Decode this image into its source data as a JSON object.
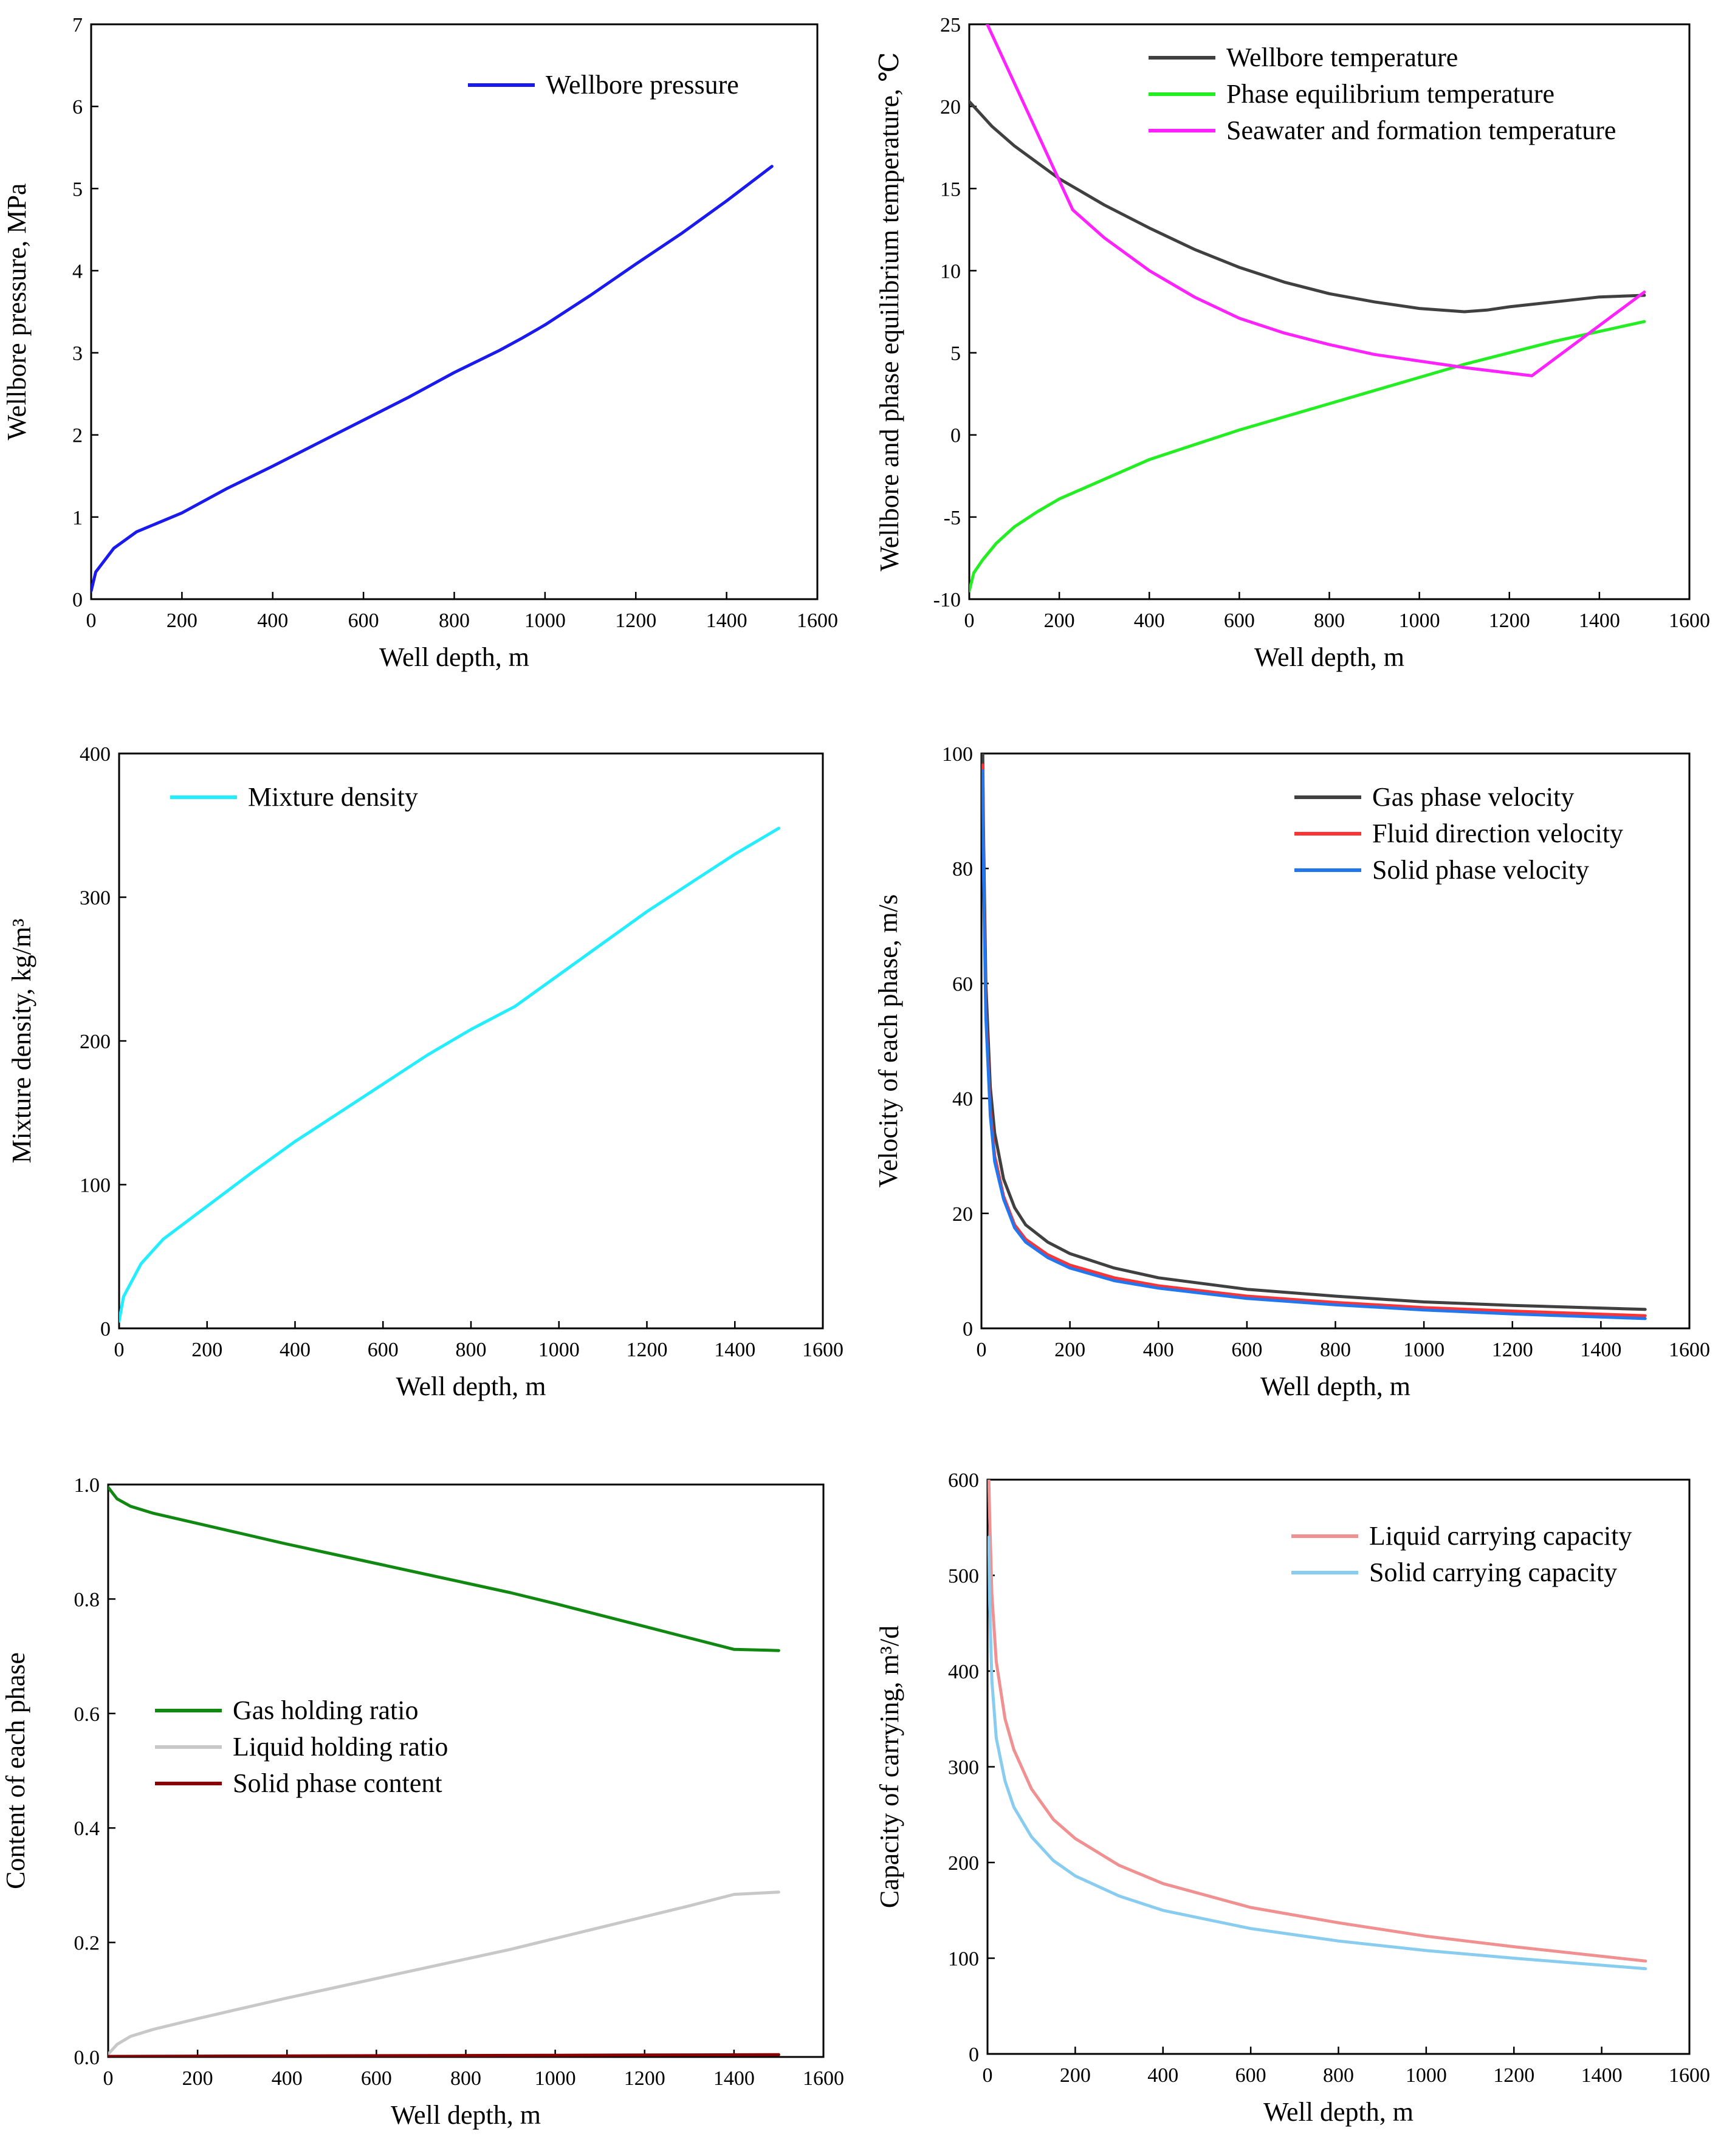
{
  "chart_data": [
    {
      "type": "line",
      "xlabel": "Well depth, m",
      "ylabel": "Wellbore pressure, MPa",
      "xlim": [
        0,
        1600
      ],
      "ylim": [
        0,
        7
      ],
      "xticks": [
        0,
        200,
        400,
        600,
        800,
        1000,
        1200,
        1400,
        1600
      ],
      "yticks": [
        0,
        1,
        2,
        3,
        4,
        5,
        6,
        7
      ],
      "legend_position": "top-right",
      "series": [
        {
          "name": "Wellbore pressure",
          "color": "#1a1aee",
          "x": [
            0,
            10,
            50,
            100,
            200,
            300,
            400,
            500,
            600,
            700,
            800,
            900,
            950,
            1000,
            1100,
            1200,
            1300,
            1400,
            1500
          ],
          "y": [
            0.1,
            0.33,
            0.62,
            0.82,
            1.05,
            1.35,
            1.62,
            1.9,
            2.18,
            2.46,
            2.76,
            3.03,
            3.18,
            3.34,
            3.7,
            4.08,
            4.45,
            4.85,
            5.27
          ]
        }
      ]
    },
    {
      "type": "line",
      "xlabel": "Well depth, m",
      "ylabel": "Wellbore and phase equilibrium temperature, ℃",
      "xlim": [
        0,
        1600
      ],
      "ylim": [
        -10,
        25
      ],
      "xticks": [
        0,
        200,
        400,
        600,
        800,
        1000,
        1200,
        1400,
        1600
      ],
      "yticks": [
        -10,
        -5,
        0,
        5,
        10,
        15,
        20,
        25
      ],
      "legend_position": "top-right",
      "series": [
        {
          "name": "Wellbore temperature",
          "color": "#404040",
          "x": [
            0,
            50,
            100,
            200,
            300,
            400,
            500,
            600,
            700,
            800,
            900,
            1000,
            1100,
            1150,
            1200,
            1300,
            1400,
            1500
          ],
          "y": [
            20.3,
            18.8,
            17.6,
            15.6,
            14.0,
            12.6,
            11.3,
            10.2,
            9.3,
            8.6,
            8.1,
            7.7,
            7.5,
            7.6,
            7.8,
            8.1,
            8.4,
            8.5
          ]
        },
        {
          "name": "Phase equilibrium temperature",
          "color": "#22ee22",
          "x": [
            0,
            10,
            30,
            60,
            100,
            150,
            200,
            300,
            400,
            500,
            600,
            700,
            800,
            900,
            1000,
            1100,
            1200,
            1300,
            1400,
            1500
          ],
          "y": [
            -9.5,
            -8.4,
            -7.6,
            -6.6,
            -5.6,
            -4.7,
            -3.9,
            -2.7,
            -1.5,
            -0.6,
            0.3,
            1.1,
            1.9,
            2.7,
            3.5,
            4.3,
            5.0,
            5.7,
            6.3,
            6.9
          ]
        },
        {
          "name": "Seawater and formation temperature",
          "color": "#ff22ff",
          "x": [
            40,
            230,
            300,
            400,
            500,
            600,
            700,
            800,
            900,
            1000,
            1100,
            1250,
            1500
          ],
          "y": [
            25,
            13.7,
            12.0,
            10.0,
            8.4,
            7.1,
            6.2,
            5.5,
            4.9,
            4.5,
            4.1,
            3.6,
            8.7
          ]
        }
      ]
    },
    {
      "type": "line",
      "xlabel": "Well depth, m",
      "ylabel": "Mixture density, kg/m³",
      "xlim": [
        0,
        1600
      ],
      "ylim": [
        0,
        400
      ],
      "xticks": [
        0,
        200,
        400,
        600,
        800,
        1000,
        1200,
        1400,
        1600
      ],
      "yticks": [
        0,
        100,
        200,
        300,
        400
      ],
      "legend_position": "top-left",
      "series": [
        {
          "name": "Mixture density",
          "color": "#22eeff",
          "x": [
            0,
            10,
            50,
            100,
            200,
            300,
            400,
            500,
            600,
            700,
            800,
            900,
            950,
            1000,
            1100,
            1200,
            1300,
            1400,
            1500
          ],
          "y": [
            5,
            22,
            45,
            62,
            85,
            108,
            130,
            150,
            170,
            190,
            208,
            224,
            235,
            246,
            268,
            290,
            310,
            330,
            348
          ]
        }
      ]
    },
    {
      "type": "line",
      "xlabel": "Well depth, m",
      "ylabel": "Velocity of each phase, m/s",
      "xlim": [
        0,
        1600
      ],
      "ylim": [
        0,
        100
      ],
      "xticks": [
        0,
        200,
        400,
        600,
        800,
        1000,
        1200,
        1400,
        1600
      ],
      "yticks": [
        0,
        20,
        40,
        60,
        80,
        100
      ],
      "legend_position": "top-right",
      "series": [
        {
          "name": "Gas phase velocity",
          "color": "#404040",
          "x": [
            3,
            5,
            10,
            20,
            30,
            50,
            75,
            100,
            150,
            200,
            300,
            400,
            600,
            800,
            1000,
            1200,
            1500
          ],
          "y": [
            100,
            85,
            60,
            42,
            34,
            26,
            21,
            18,
            15,
            13,
            10.5,
            8.8,
            6.8,
            5.6,
            4.6,
            4.0,
            3.3
          ]
        },
        {
          "name": "Fluid direction velocity",
          "color": "#ff3333",
          "x": [
            3,
            5,
            10,
            20,
            30,
            50,
            75,
            100,
            150,
            200,
            300,
            400,
            600,
            800,
            1000,
            1200,
            1500
          ],
          "y": [
            98,
            80,
            55,
            38,
            30,
            23,
            18,
            15.5,
            12.8,
            11,
            8.8,
            7.4,
            5.6,
            4.5,
            3.6,
            3.0,
            2.2
          ]
        },
        {
          "name": "Solid phase velocity",
          "color": "#2277ee",
          "x": [
            3,
            5,
            10,
            20,
            30,
            50,
            75,
            100,
            150,
            200,
            300,
            400,
            600,
            800,
            1000,
            1200,
            1500
          ],
          "y": [
            97,
            78,
            54,
            37,
            29,
            22.5,
            17.5,
            15,
            12.3,
            10.5,
            8.3,
            7.0,
            5.2,
            4.1,
            3.2,
            2.5,
            1.7
          ]
        }
      ]
    },
    {
      "type": "line",
      "xlabel": "Well depth, m",
      "ylabel": "Content of each phase",
      "xlim": [
        0,
        1600
      ],
      "ylim": [
        0,
        1.0
      ],
      "xticks": [
        0,
        200,
        400,
        600,
        800,
        1000,
        1200,
        1400,
        1600
      ],
      "yticks": [
        0.0,
        0.2,
        0.4,
        0.6,
        0.8,
        1.0
      ],
      "ytick_labels": [
        "0.0",
        "0.2",
        "0.4",
        "0.6",
        "0.8",
        "1.0"
      ],
      "legend_position": "center-left",
      "series": [
        {
          "name": "Gas holding ratio",
          "color": "#118811",
          "x": [
            0,
            20,
            50,
            100,
            200,
            300,
            400,
            500,
            600,
            700,
            800,
            900,
            1000,
            1100,
            1200,
            1300,
            1400,
            1500
          ],
          "y": [
            0.995,
            0.975,
            0.962,
            0.95,
            0.932,
            0.914,
            0.896,
            0.879,
            0.862,
            0.845,
            0.828,
            0.811,
            0.792,
            0.772,
            0.752,
            0.732,
            0.712,
            0.71
          ]
        },
        {
          "name": "Liquid holding ratio",
          "color": "#c8c8c8",
          "x": [
            0,
            20,
            50,
            100,
            200,
            300,
            400,
            500,
            600,
            700,
            800,
            900,
            1000,
            1100,
            1200,
            1300,
            1400,
            1500
          ],
          "y": [
            0.005,
            0.022,
            0.036,
            0.048,
            0.067,
            0.085,
            0.103,
            0.12,
            0.137,
            0.154,
            0.171,
            0.188,
            0.207,
            0.226,
            0.245,
            0.264,
            0.284,
            0.288
          ]
        },
        {
          "name": "Solid phase content",
          "color": "#880000",
          "x": [
            0,
            500,
            1000,
            1500
          ],
          "y": [
            0.001,
            0.002,
            0.003,
            0.004
          ]
        }
      ]
    },
    {
      "type": "line",
      "xlabel": "Well depth, m",
      "ylabel": "Capacity of carrying, m³/d",
      "xlim": [
        0,
        1600
      ],
      "ylim": [
        0,
        600
      ],
      "xticks": [
        0,
        200,
        400,
        600,
        800,
        1000,
        1200,
        1400,
        1600
      ],
      "yticks": [
        0,
        100,
        200,
        300,
        400,
        500,
        600
      ],
      "legend_position": "top-right",
      "series": [
        {
          "name": "Liquid carrying capacity",
          "color": "#f09090",
          "x": [
            3,
            5,
            10,
            20,
            40,
            60,
            100,
            150,
            200,
            300,
            400,
            600,
            800,
            1000,
            1200,
            1500
          ],
          "y": [
            600,
            560,
            480,
            410,
            350,
            318,
            277,
            245,
            225,
            197,
            178,
            153,
            137,
            123,
            112,
            97
          ]
        },
        {
          "name": "Solid carrying capacity",
          "color": "#88ccf0",
          "x": [
            3,
            5,
            10,
            20,
            40,
            60,
            100,
            150,
            200,
            300,
            400,
            600,
            800,
            1000,
            1200,
            1500
          ],
          "y": [
            540,
            470,
            390,
            330,
            285,
            258,
            227,
            202,
            186,
            165,
            150,
            131,
            118,
            108,
            100,
            89
          ]
        }
      ]
    }
  ]
}
